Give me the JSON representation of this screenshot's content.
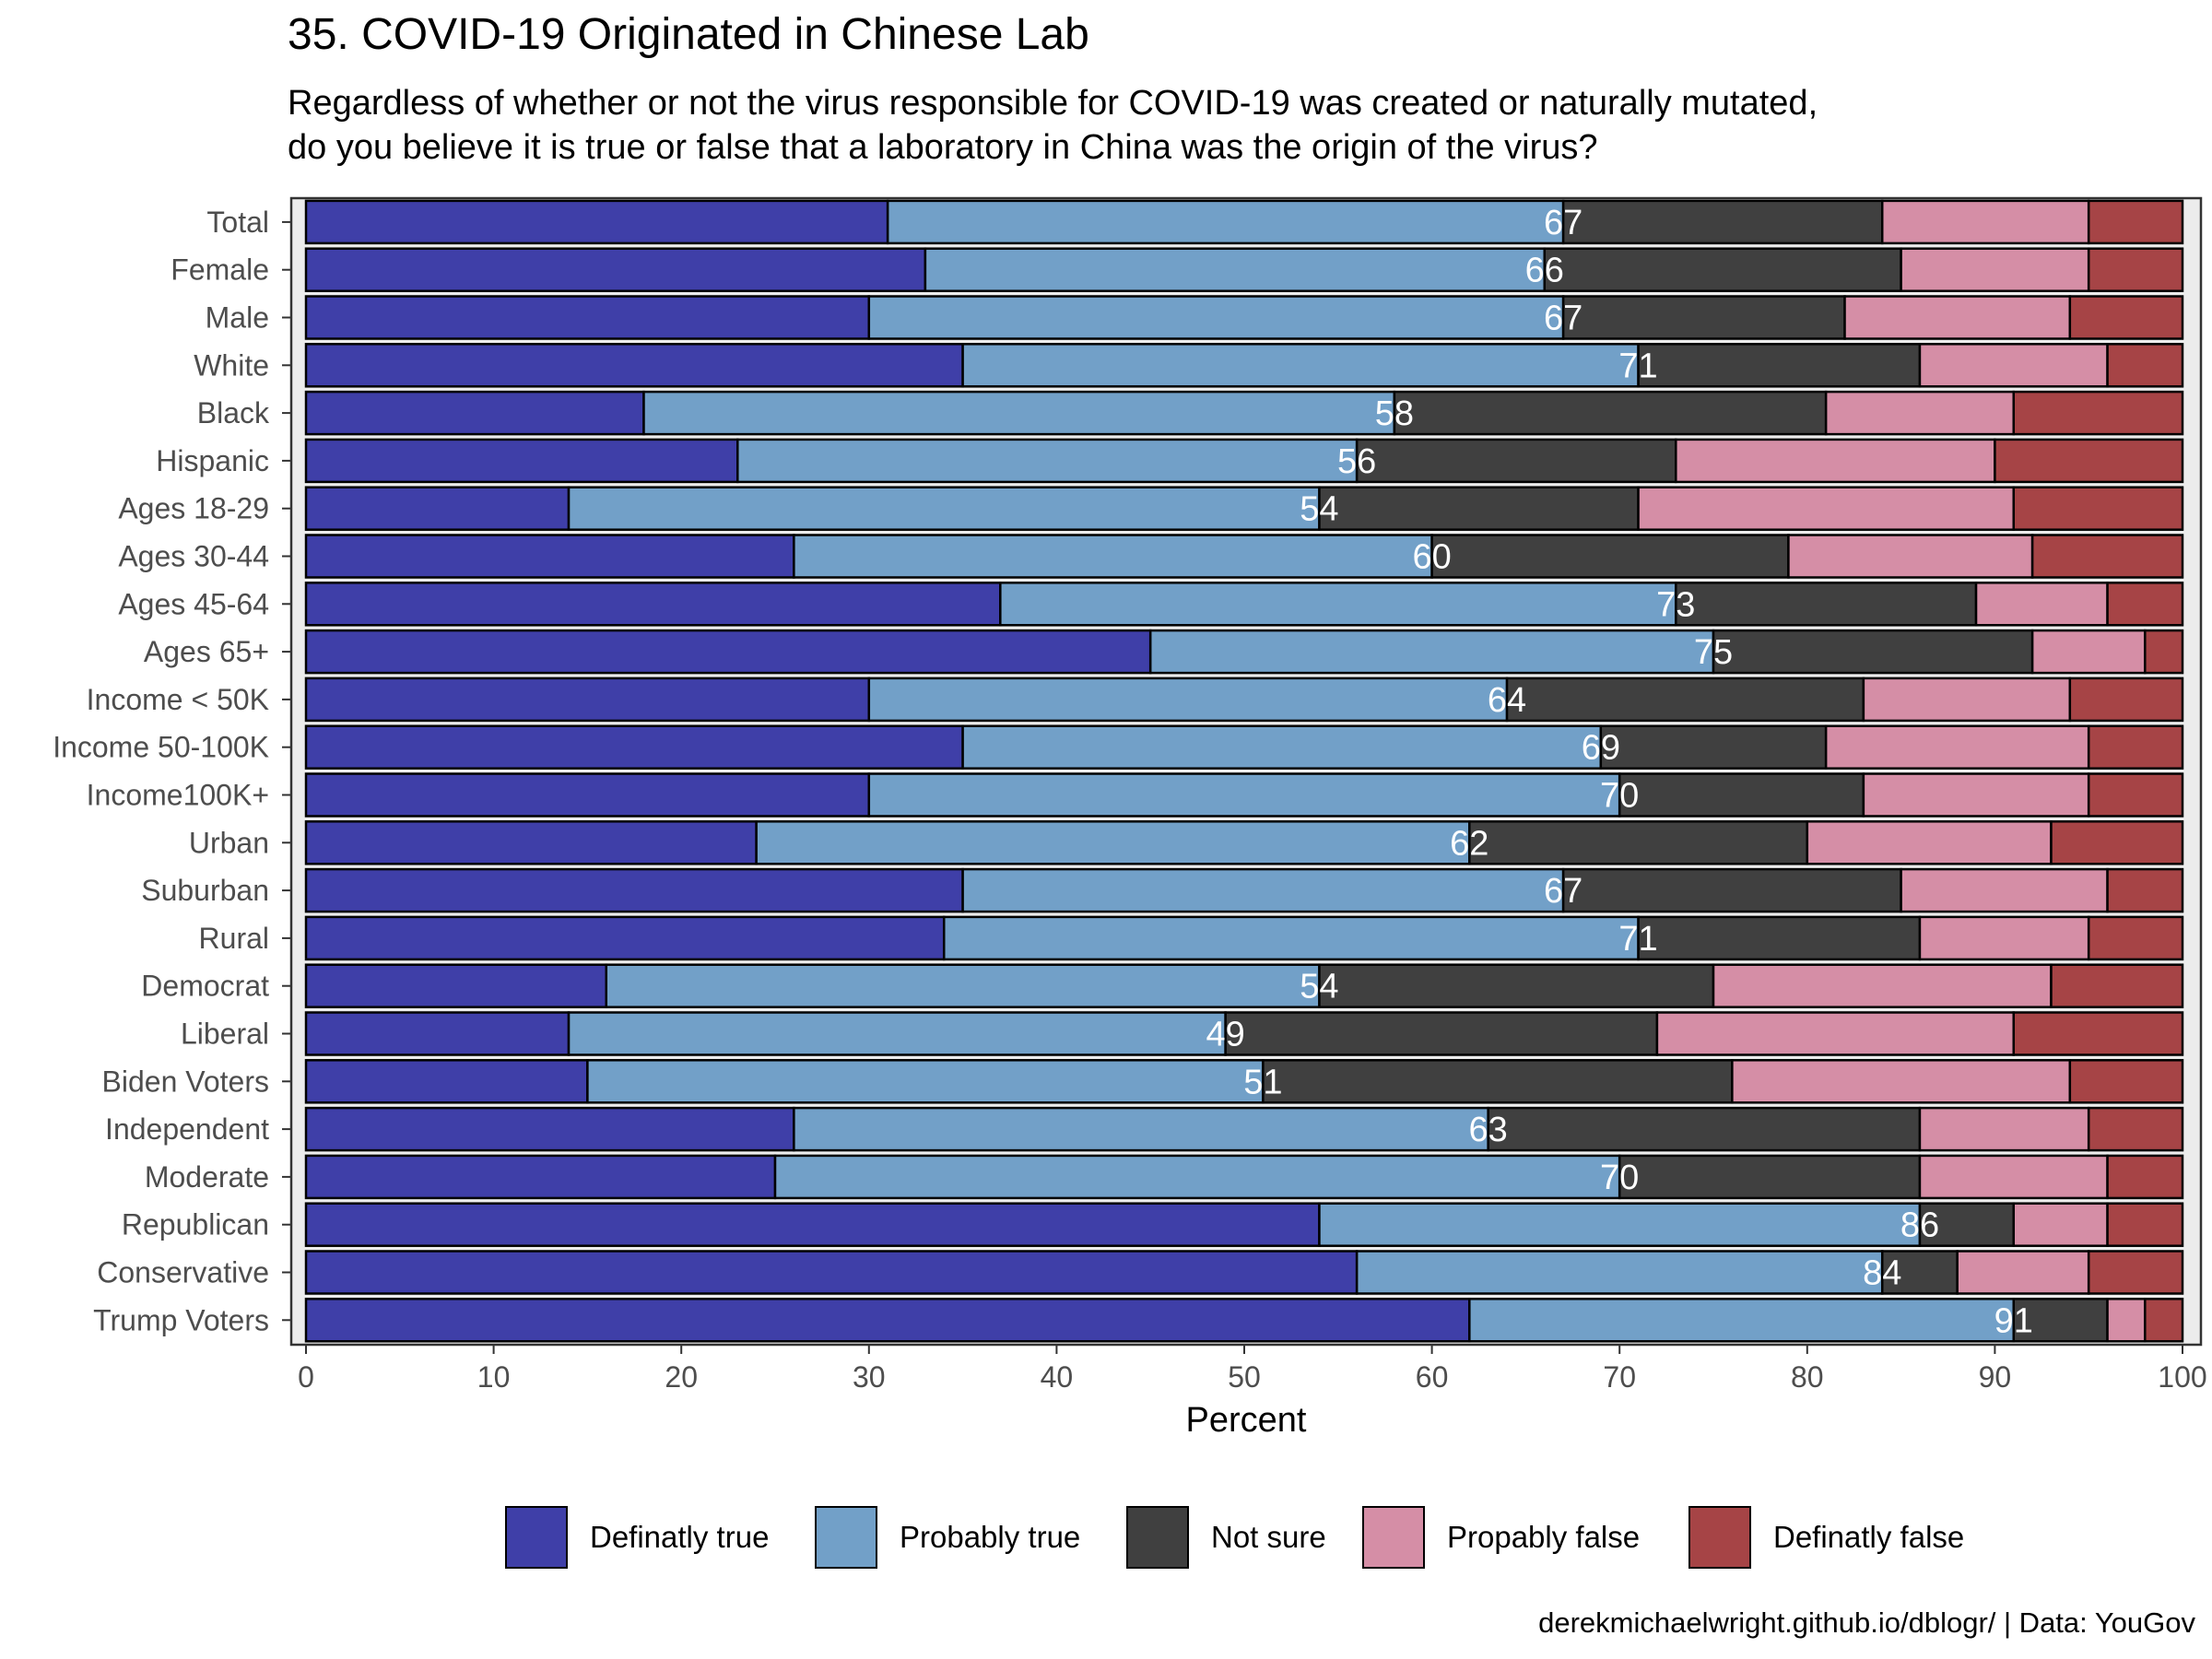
{
  "title": "35. COVID-19 Originated in Chinese Lab",
  "subtitle_lines": [
    "Regardless of whether or not the virus responsible for COVID-19 was created or naturally mutated,",
    "do you believe it is true or false that a laboratory in China was the origin of the virus?"
  ],
  "caption": "derekmichaelwright.github.io/dblogr/ | Data: YouGov",
  "chart_data": {
    "type": "bar",
    "orientation": "horizontal",
    "stacked": true,
    "xlabel": "Percent",
    "xlim": [
      0,
      100
    ],
    "xticks": [
      0,
      10,
      20,
      30,
      40,
      50,
      60,
      70,
      80,
      90,
      100
    ],
    "grid": false,
    "legend_position": "bottom",
    "categories": [
      "Total",
      "Female",
      "Male",
      "White",
      "Black",
      "Hispanic",
      "Ages 18-29",
      "Ages 30-44",
      "Ages 45-64",
      "Ages 65+",
      "Income < 50K",
      "Income 50-100K",
      "Income100K+",
      "Urban",
      "Suburban",
      "Rural",
      "Democrat",
      "Liberal",
      "Biden Voters",
      "Independent",
      "Moderate",
      "Republican",
      "Conservative",
      "Trump Voters"
    ],
    "series": [
      {
        "name": "Definatly true",
        "color": "#3f3fa8",
        "values": [
          31,
          33,
          30,
          35,
          18,
          23,
          14,
          26,
          37,
          45,
          30,
          35,
          30,
          24,
          35,
          34,
          16,
          14,
          15,
          26,
          25,
          54,
          56,
          62
        ]
      },
      {
        "name": "Probably true",
        "color": "#72a0c8",
        "values": [
          36,
          33,
          37,
          36,
          40,
          33,
          40,
          34,
          36,
          30,
          34,
          34,
          40,
          38,
          32,
          37,
          38,
          35,
          36,
          37,
          45,
          32,
          28,
          29
        ]
      },
      {
        "name": "Not sure",
        "color": "#404040",
        "values": [
          17,
          19,
          15,
          15,
          23,
          17,
          17,
          19,
          16,
          17,
          19,
          12,
          13,
          18,
          18,
          15,
          21,
          23,
          25,
          23,
          16,
          5,
          4,
          5
        ]
      },
      {
        "name": "Propably false",
        "color": "#d58ea6",
        "values": [
          11,
          10,
          12,
          10,
          10,
          17,
          20,
          13,
          7,
          6,
          11,
          14,
          12,
          13,
          11,
          9,
          18,
          19,
          18,
          9,
          10,
          5,
          7,
          2
        ]
      },
      {
        "name": "Definatly false",
        "color": "#a64446",
        "values": [
          5,
          5,
          6,
          4,
          9,
          10,
          9,
          8,
          4,
          2,
          6,
          5,
          5,
          7,
          4,
          5,
          7,
          9,
          6,
          5,
          4,
          4,
          5,
          2
        ]
      }
    ],
    "true_total_labels": [
      67,
      66,
      67,
      71,
      58,
      56,
      54,
      60,
      73,
      75,
      64,
      69,
      70,
      62,
      67,
      71,
      54,
      49,
      51,
      63,
      70,
      86,
      84,
      91
    ]
  }
}
